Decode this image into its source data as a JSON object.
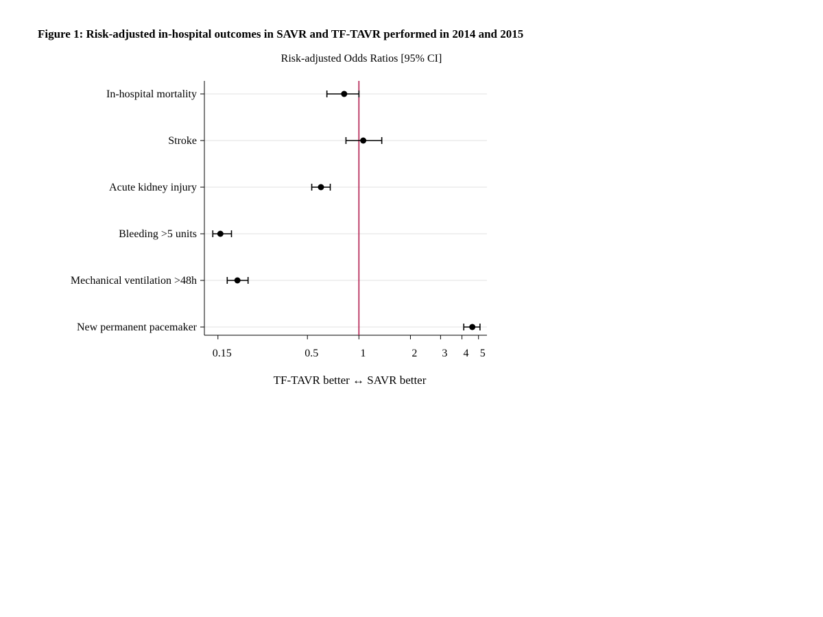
{
  "figure": {
    "title": "Figure 1: Risk-adjusted in-hospital outcomes in SAVR and TF-TAVR performed in 2014 and 2015"
  },
  "chart_data": {
    "type": "scatter",
    "subtype": "forest-plot",
    "title": "Risk-adjusted Odds Ratios [95% CI]",
    "xlabel": "TF-TAVR better ↔ SAVR better",
    "ylabel": "",
    "x_scale": "log",
    "xlim": [
      0.125,
      5.6
    ],
    "x_ticks": [
      0.15,
      0.5,
      1,
      2,
      3,
      4,
      5
    ],
    "x_tick_labels": [
      "0.15",
      "0.5",
      "1",
      "2",
      "3",
      "4",
      "5"
    ],
    "reference_line": 1,
    "reference_line_color": "#b0174a",
    "grid": "horizontal",
    "categories": [
      "In-hospital mortality",
      "Stroke",
      "Acute kidney injury",
      "Bleeding >5 units",
      "Mechanical ventilation >48h",
      "New permanent pacemaker"
    ],
    "estimates": [
      0.82,
      1.06,
      0.6,
      0.155,
      0.195,
      4.6
    ],
    "ci_lower": [
      0.65,
      0.84,
      0.53,
      0.14,
      0.17,
      4.1
    ],
    "ci_upper": [
      1.0,
      1.36,
      0.68,
      0.18,
      0.225,
      5.1
    ]
  }
}
